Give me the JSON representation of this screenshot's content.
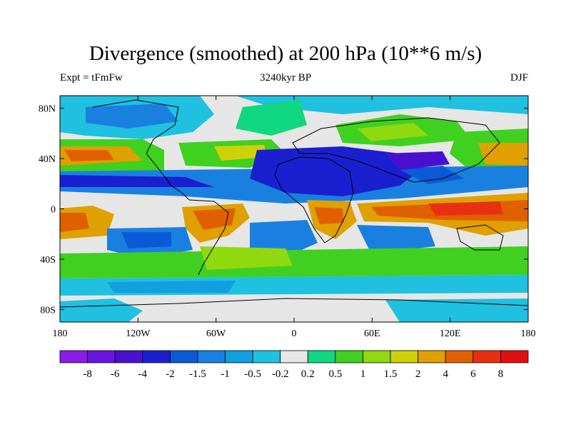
{
  "title": "Divergence (smoothed) at 200 hPa (10**6 m/s)",
  "subtitle_left": "Expt = tFmFw",
  "subtitle_center": "3240kyr BP",
  "subtitle_right": "DJF",
  "lat_ticks": [
    "80N",
    "40N",
    "0",
    "40S",
    "80S"
  ],
  "lat_values": [
    80,
    40,
    0,
    -40,
    -80
  ],
  "lon_ticks": [
    "180",
    "120W",
    "60W",
    "0",
    "60E",
    "120E",
    "180"
  ],
  "lon_values": [
    -180,
    -120,
    -60,
    0,
    60,
    120,
    180
  ],
  "colorbar": {
    "labels": [
      "-8",
      "-6",
      "-4",
      "-2",
      "-1.5",
      "-1",
      "-0.5",
      "-0.2",
      "0.2",
      "0.5",
      "1",
      "1.5",
      "2",
      "4",
      "6",
      "8"
    ],
    "colors": [
      "#8a1ce8",
      "#6a14e0",
      "#4a10d0",
      "#1a20d0",
      "#0a5ad8",
      "#1a80e0",
      "#10a0e0",
      "#20c0e0",
      "#e6e6e6",
      "#10d880",
      "#40d020",
      "#90d810",
      "#d0d008",
      "#e0a000",
      "#e06000",
      "#e83010",
      "#e01010"
    ]
  }
}
